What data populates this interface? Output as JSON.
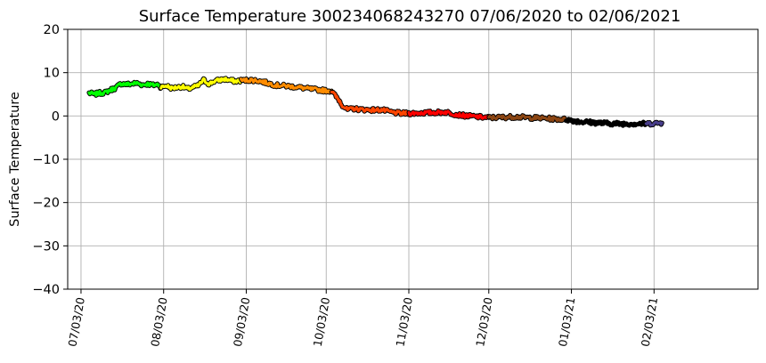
{
  "chart_data": {
    "type": "line",
    "title": "Surface Temperature 300234068243270  07/06/2020 to 02/06/2021",
    "xlabel": "",
    "ylabel": "Surface Temperature",
    "x_type": "date",
    "xlim": [
      "2020-06-28",
      "2021-03-14"
    ],
    "ylim": [
      -40,
      20
    ],
    "yticks": [
      20,
      10,
      0,
      -10,
      -20,
      -30,
      -40
    ],
    "ytick_labels": [
      "20",
      "10",
      "0",
      "−10",
      "−20",
      "−30",
      "−40"
    ],
    "xticks": [
      "2020-07-03",
      "2020-08-03",
      "2020-09-03",
      "2020-10-03",
      "2020-11-03",
      "2020-12-03",
      "2021-01-03",
      "2021-02-03"
    ],
    "xtick_labels": [
      "07/03/20",
      "08/03/20",
      "09/03/20",
      "10/03/20",
      "11/03/20",
      "12/03/20",
      "01/03/21",
      "02/03/21"
    ],
    "grid": true,
    "legend": "none",
    "series": [
      {
        "color": "#00ff00",
        "x": [
          "2020-07-06",
          "2020-07-08",
          "2020-07-10",
          "2020-07-12",
          "2020-07-14",
          "2020-07-16",
          "2020-07-18",
          "2020-07-20",
          "2020-07-22",
          "2020-07-24",
          "2020-07-26",
          "2020-07-28",
          "2020-07-30",
          "2020-08-01",
          "2020-08-02"
        ],
        "y": [
          5.3,
          5.0,
          5.3,
          5.4,
          6.0,
          6.5,
          7.5,
          7.3,
          7.4,
          7.6,
          7.2,
          7.4,
          7.1,
          7.3,
          6.6
        ]
      },
      {
        "color": "#ffff00",
        "x": [
          "2020-08-02",
          "2020-08-04",
          "2020-08-06",
          "2020-08-08",
          "2020-08-10",
          "2020-08-12",
          "2020-08-14",
          "2020-08-16",
          "2020-08-18",
          "2020-08-20",
          "2020-08-22",
          "2020-08-24",
          "2020-08-26",
          "2020-08-28",
          "2020-08-30",
          "2020-09-01"
        ],
        "y": [
          6.6,
          7.0,
          6.4,
          6.6,
          6.8,
          6.2,
          6.6,
          7.0,
          8.3,
          7.4,
          8.0,
          8.3,
          8.5,
          8.2,
          8.0,
          8.2
        ]
      },
      {
        "color": "#ff8c00",
        "x": [
          "2020-09-01",
          "2020-09-05",
          "2020-09-08",
          "2020-09-11",
          "2020-09-14",
          "2020-09-17",
          "2020-09-20",
          "2020-09-23",
          "2020-09-26",
          "2020-09-29",
          "2020-10-02",
          "2020-10-05"
        ],
        "y": [
          8.2,
          8.3,
          8.1,
          7.6,
          7.1,
          7.0,
          6.8,
          6.6,
          6.3,
          6.1,
          5.9,
          5.8
        ]
      },
      {
        "color": "#ff4500",
        "x": [
          "2020-10-05",
          "2020-10-07",
          "2020-10-08",
          "2020-10-09",
          "2020-10-11",
          "2020-10-13",
          "2020-10-16",
          "2020-10-20",
          "2020-10-24",
          "2020-10-28",
          "2020-10-31",
          "2020-11-03"
        ],
        "y": [
          5.8,
          4.2,
          3.5,
          2.5,
          1.4,
          1.7,
          1.5,
          1.4,
          1.4,
          0.8,
          0.6,
          0.6
        ]
      },
      {
        "color": "#ff0000",
        "x": [
          "2020-11-03",
          "2020-11-08",
          "2020-11-13",
          "2020-11-17",
          "2020-11-21",
          "2020-11-25",
          "2020-11-29",
          "2020-12-03"
        ],
        "y": [
          0.6,
          0.7,
          0.8,
          0.9,
          0.3,
          0.0,
          -0.2,
          -0.4
        ]
      },
      {
        "color": "#8b4513",
        "x": [
          "2020-12-03",
          "2020-12-08",
          "2020-12-13",
          "2020-12-18",
          "2020-12-23",
          "2020-12-28",
          "2021-01-01"
        ],
        "y": [
          -0.4,
          -0.3,
          -0.2,
          -0.4,
          -0.5,
          -0.7,
          -0.8
        ]
      },
      {
        "color": "#000000",
        "x": [
          "2021-01-01",
          "2021-01-06",
          "2021-01-11",
          "2021-01-16",
          "2021-01-21",
          "2021-01-26",
          "2021-01-31"
        ],
        "y": [
          -0.8,
          -1.3,
          -1.5,
          -1.7,
          -1.8,
          -1.8,
          -1.8
        ]
      },
      {
        "color": "#483d8b",
        "x": [
          "2021-01-31",
          "2021-02-03",
          "2021-02-06"
        ],
        "y": [
          -1.8,
          -1.7,
          -1.6
        ]
      }
    ]
  }
}
